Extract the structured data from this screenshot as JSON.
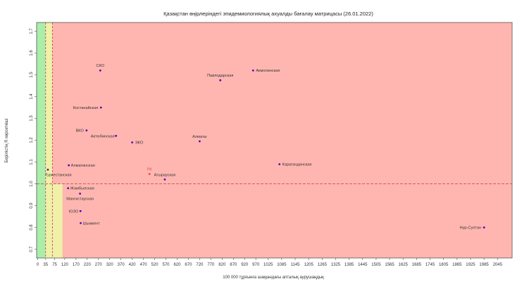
{
  "chart_data": {
    "type": "scatter",
    "title": "Қазақстан өңірлеріндегі эпидемиологиялық ахуалды бағалау матрицасы  (26.01.2022)",
    "xlabel": "100 000 тұрғынға шаққандағы апталық аурушаңдық",
    "ylabel": "Берілістің R көрсеткіші",
    "xlim": [
      -5,
      2110
    ],
    "ylim": [
      0.66,
      1.74
    ],
    "x_ticks": [
      0,
      35,
      75,
      120,
      170,
      220,
      270,
      320,
      370,
      420,
      470,
      520,
      570,
      620,
      670,
      720,
      770,
      820,
      870,
      920,
      970,
      1025,
      1085,
      1145,
      1205,
      1265,
      1325,
      1385,
      1445,
      1505,
      1565,
      1625,
      1685,
      1745,
      1805,
      1865,
      1925,
      1985,
      2045
    ],
    "x_tick_labels": [
      "0",
      "35",
      "75",
      "120",
      "170",
      "220",
      "270",
      "320",
      "370",
      "420",
      "470",
      "520",
      "570",
      "620",
      "670",
      "720",
      "770",
      "820",
      "870",
      "920",
      "970",
      "1025",
      "1085",
      "1145",
      "1205",
      "1265",
      "1325",
      "1385",
      "1445",
      "1505",
      "1565",
      "1625",
      "1685",
      "1745",
      "1805",
      "1865",
      "1925",
      "1985",
      "2045"
    ],
    "y_ticks": [
      0.7,
      0.8,
      0.9,
      1.0,
      1.1,
      1.2,
      1.3,
      1.4,
      1.5,
      1.6,
      1.7
    ],
    "y_tick_labels": [
      "0.7",
      "0.8",
      "0.9",
      "1.0",
      "1.1",
      "1.2",
      "1.3",
      "1.4",
      "1.5",
      "1.6",
      "1.7"
    ],
    "zones": [
      {
        "x_from": -5,
        "x_to": 35,
        "color": "#aaeeaa"
      },
      {
        "x_from": 35,
        "x_to": 65,
        "color": "#f0f0a8"
      },
      {
        "x_from": 65,
        "x_to": 2110,
        "color": "#ffb6b0"
      }
    ],
    "extra_yellow_band": {
      "x_from": 65,
      "x_to": 110,
      "y_from": 0.66,
      "y_to": 1.0,
      "color": "#f0f0a8"
    },
    "threshold_lines": {
      "x_green": 35,
      "x_yellow": 65,
      "y": 1.0,
      "color": "#c04040"
    },
    "grid": false,
    "points": [
      {
        "label": "СКО",
        "x": 278,
        "y": 1.52
      },
      {
        "label": "Акмолинская",
        "x": 958,
        "y": 1.52
      },
      {
        "label": "Павлодарская",
        "x": 812,
        "y": 1.475
      },
      {
        "label": "Костанайская",
        "x": 281,
        "y": 1.35
      },
      {
        "label": "ВКО",
        "x": 217,
        "y": 1.245
      },
      {
        "label": "Актюбинская",
        "x": 348,
        "y": 1.22
      },
      {
        "label": "ЭКО",
        "x": 420,
        "y": 1.19
      },
      {
        "label": "Алматы",
        "x": 720,
        "y": 1.195
      },
      {
        "label": "Алматинская",
        "x": 138,
        "y": 1.085
      },
      {
        "label": "Карагандинская",
        "x": 1075,
        "y": 1.09
      },
      {
        "label": "Туркестанская",
        "x": 45,
        "y": 1.065
      },
      {
        "label": "РК",
        "x": 497,
        "y": 1.045
      },
      {
        "label": "Атырауская",
        "x": 565,
        "y": 1.02
      },
      {
        "label": "Жамбылская",
        "x": 135,
        "y": 0.98
      },
      {
        "label": "Мангистауская",
        "x": 188,
        "y": 0.955
      },
      {
        "label": "ЮЗО",
        "x": 190,
        "y": 0.875
      },
      {
        "label": "Шымкент",
        "x": 191,
        "y": 0.82
      },
      {
        "label": "Нур-Султан",
        "x": 1985,
        "y": 0.8
      }
    ],
    "point_color": "#6000c0",
    "highlight_color": "#e05050"
  }
}
